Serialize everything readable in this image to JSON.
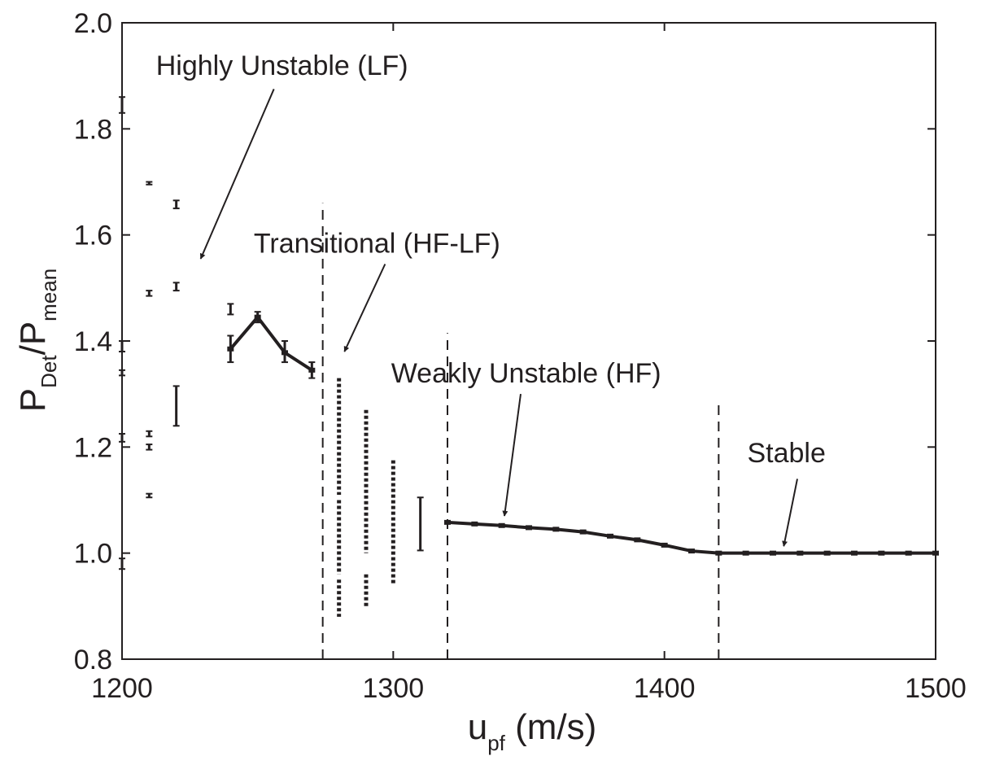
{
  "chart_data": {
    "type": "line",
    "title": "",
    "xlabel": {
      "main": "u",
      "sub": "pf",
      "unit": " (m/s)"
    },
    "ylabel": {
      "p1": "P",
      "sub1": "Det",
      "p2": "/P",
      "sub2": "mean"
    },
    "xlim": [
      1200,
      1500
    ],
    "ylim": [
      0.8,
      2.0
    ],
    "x_ticks": [
      1200,
      1300,
      1400,
      1500
    ],
    "y_ticks": [
      0.8,
      1.0,
      1.2,
      1.4,
      1.6,
      1.8,
      2.0
    ],
    "y_tick_labels": [
      "0.8",
      "1.0",
      "1.2",
      "1.4",
      "1.6",
      "1.8",
      "2.0"
    ],
    "grid": false,
    "legend": "none",
    "series": [
      {
        "x": [
          1240,
          1250,
          1260,
          1270
        ],
        "y": [
          1.385,
          1.445,
          1.378,
          1.345
        ],
        "style": "line"
      },
      {
        "x": [
          1320,
          1330,
          1340,
          1350,
          1360,
          1370,
          1380,
          1390,
          1400,
          1410,
          1420,
          1430,
          1440,
          1450,
          1460,
          1470,
          1480,
          1490,
          1500
        ],
        "y": [
          1.058,
          1.055,
          1.052,
          1.048,
          1.045,
          1.04,
          1.032,
          1.025,
          1.015,
          1.004,
          1.0,
          1.0,
          1.0,
          1.0,
          1.0,
          1.0,
          1.0,
          1.0,
          1.0
        ],
        "style": "line"
      }
    ],
    "error_bars": [
      {
        "x": 1200,
        "low": 1.83,
        "high": 1.86
      },
      {
        "x": 1200,
        "low": 1.38,
        "high": 1.4
      },
      {
        "x": 1200,
        "low": 1.335,
        "high": 1.345
      },
      {
        "x": 1200,
        "low": 1.21,
        "high": 1.225
      },
      {
        "x": 1200,
        "low": 0.97,
        "high": 0.99
      },
      {
        "x": 1210,
        "low": 1.695,
        "high": 1.7
      },
      {
        "x": 1210,
        "low": 1.485,
        "high": 1.495
      },
      {
        "x": 1210,
        "low": 1.22,
        "high": 1.23
      },
      {
        "x": 1210,
        "low": 1.195,
        "high": 1.205
      },
      {
        "x": 1210,
        "low": 1.105,
        "high": 1.112
      },
      {
        "x": 1220,
        "low": 1.65,
        "high": 1.665
      },
      {
        "x": 1220,
        "low": 1.495,
        "high": 1.51
      },
      {
        "x": 1220,
        "low": 1.24,
        "high": 1.315
      },
      {
        "x": 1240,
        "low": 1.45,
        "high": 1.47
      },
      {
        "x": 1240,
        "low": 1.36,
        "high": 1.41
      },
      {
        "x": 1250,
        "low": 1.435,
        "high": 1.455
      },
      {
        "x": 1260,
        "low": 1.36,
        "high": 1.4
      },
      {
        "x": 1270,
        "low": 1.33,
        "high": 1.36
      },
      {
        "x": 1310,
        "low": 1.005,
        "high": 1.105
      }
    ],
    "scatter_columns": [
      {
        "x": 1280,
        "ranges": [
          [
            1.11,
            1.33
          ],
          [
            0.96,
            1.1
          ],
          [
            0.88,
            0.95
          ]
        ]
      },
      {
        "x": 1290,
        "ranges": [
          [
            1.0,
            1.27
          ],
          [
            0.9,
            0.96
          ]
        ]
      },
      {
        "x": 1300,
        "ranges": [
          [
            0.94,
            1.175
          ]
        ]
      }
    ],
    "vlines": [
      {
        "x": 1274,
        "y": [
          0.8,
          1.66
        ]
      },
      {
        "x": 1320,
        "y": [
          0.8,
          1.415
        ]
      },
      {
        "x": 1420,
        "y": [
          0.8,
          1.29
        ]
      }
    ],
    "annotations": [
      {
        "text": "Highly Unstable (LF)",
        "x": 1259,
        "y": 1.92,
        "arrow_from": [
          1256,
          1.875
        ],
        "arrow_to": [
          1229,
          1.555
        ]
      },
      {
        "text": "Transitional (HF-LF)",
        "x": 1294,
        "y": 1.585,
        "arrow_from": [
          1297,
          1.545
        ],
        "arrow_to": [
          1282,
          1.38
        ]
      },
      {
        "text": "Weakly Unstable (HF)",
        "x": 1349,
        "y": 1.34,
        "arrow_from": [
          1347,
          1.3
        ],
        "arrow_to": [
          1341,
          1.07
        ]
      },
      {
        "text": "Stable",
        "x": 1445,
        "y": 1.19,
        "arrow_from": [
          1449,
          1.14
        ],
        "arrow_to": [
          1444,
          1.013
        ]
      }
    ]
  }
}
